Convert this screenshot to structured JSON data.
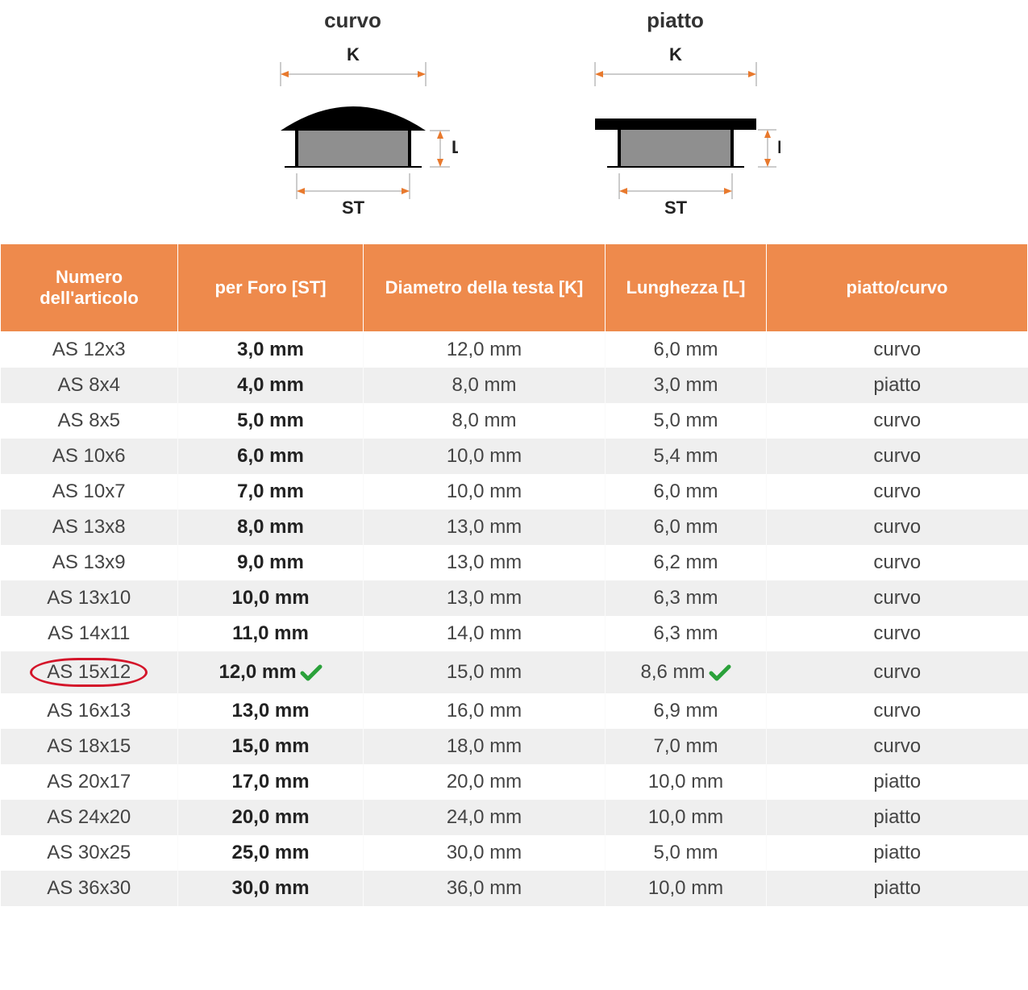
{
  "diagrams": {
    "curvo": {
      "title": "curvo",
      "label_K": "K",
      "label_L": "L",
      "label_ST": "ST"
    },
    "piatto": {
      "title": "piatto",
      "label_K": "K",
      "label_L": "L",
      "label_ST": "ST"
    }
  },
  "colors": {
    "header_bg": "#ee8a4c",
    "header_text": "#ffffff",
    "row_even_bg": "#efefef",
    "row_odd_bg": "#ffffff",
    "circle_stroke": "#d4152a",
    "check_color": "#2aa13a",
    "dim_arrow": "#e8792d",
    "shape_black": "#000000",
    "shape_gray": "#8f8f8f"
  },
  "table": {
    "headers": {
      "article": "Numero dell'articolo",
      "st": "per Foro [ST]",
      "k": "Diametro della testa [K]",
      "l": "Lunghezza [L]",
      "type": "piatto/curvo"
    },
    "col_widths": [
      "220px",
      "230px",
      "300px",
      "200px",
      "auto"
    ],
    "rows": [
      {
        "article": "AS 12x3",
        "st": "3,0 mm",
        "k": "12,0 mm",
        "l": "6,0 mm",
        "type": "curvo",
        "highlight": false,
        "check_st": false,
        "check_l": false
      },
      {
        "article": "AS 8x4",
        "st": "4,0 mm",
        "k": "8,0 mm",
        "l": "3,0 mm",
        "type": "piatto",
        "highlight": false,
        "check_st": false,
        "check_l": false
      },
      {
        "article": "AS 8x5",
        "st": "5,0 mm",
        "k": "8,0 mm",
        "l": "5,0 mm",
        "type": "curvo",
        "highlight": false,
        "check_st": false,
        "check_l": false
      },
      {
        "article": "AS 10x6",
        "st": "6,0 mm",
        "k": "10,0 mm",
        "l": "5,4 mm",
        "type": "curvo",
        "highlight": false,
        "check_st": false,
        "check_l": false
      },
      {
        "article": "AS 10x7",
        "st": "7,0 mm",
        "k": "10,0 mm",
        "l": "6,0 mm",
        "type": "curvo",
        "highlight": false,
        "check_st": false,
        "check_l": false
      },
      {
        "article": "AS 13x8",
        "st": "8,0 mm",
        "k": "13,0 mm",
        "l": "6,0 mm",
        "type": "curvo",
        "highlight": false,
        "check_st": false,
        "check_l": false
      },
      {
        "article": "AS 13x9",
        "st": "9,0 mm",
        "k": "13,0 mm",
        "l": "6,2 mm",
        "type": "curvo",
        "highlight": false,
        "check_st": false,
        "check_l": false
      },
      {
        "article": "AS 13x10",
        "st": "10,0 mm",
        "k": "13,0 mm",
        "l": "6,3 mm",
        "type": "curvo",
        "highlight": false,
        "check_st": false,
        "check_l": false
      },
      {
        "article": "AS 14x11",
        "st": "11,0 mm",
        "k": "14,0 mm",
        "l": "6,3 mm",
        "type": "curvo",
        "highlight": false,
        "check_st": false,
        "check_l": false
      },
      {
        "article": "AS 15x12",
        "st": "12,0 mm",
        "k": "15,0 mm",
        "l": "8,6 mm",
        "type": "curvo",
        "highlight": true,
        "check_st": true,
        "check_l": true
      },
      {
        "article": "AS 16x13",
        "st": "13,0 mm",
        "k": "16,0 mm",
        "l": "6,9 mm",
        "type": "curvo",
        "highlight": false,
        "check_st": false,
        "check_l": false
      },
      {
        "article": "AS 18x15",
        "st": "15,0 mm",
        "k": "18,0 mm",
        "l": "7,0 mm",
        "type": "curvo",
        "highlight": false,
        "check_st": false,
        "check_l": false
      },
      {
        "article": "AS 20x17",
        "st": "17,0 mm",
        "k": "20,0 mm",
        "l": "10,0 mm",
        "type": "piatto",
        "highlight": false,
        "check_st": false,
        "check_l": false
      },
      {
        "article": "AS 24x20",
        "st": "20,0 mm",
        "k": "24,0 mm",
        "l": "10,0 mm",
        "type": "piatto",
        "highlight": false,
        "check_st": false,
        "check_l": false
      },
      {
        "article": "AS 30x25",
        "st": "25,0 mm",
        "k": "30,0 mm",
        "l": "5,0 mm",
        "type": "piatto",
        "highlight": false,
        "check_st": false,
        "check_l": false
      },
      {
        "article": "AS 36x30",
        "st": "30,0 mm",
        "k": "36,0 mm",
        "l": "10,0 mm",
        "type": "piatto",
        "highlight": false,
        "check_st": false,
        "check_l": false
      }
    ]
  }
}
